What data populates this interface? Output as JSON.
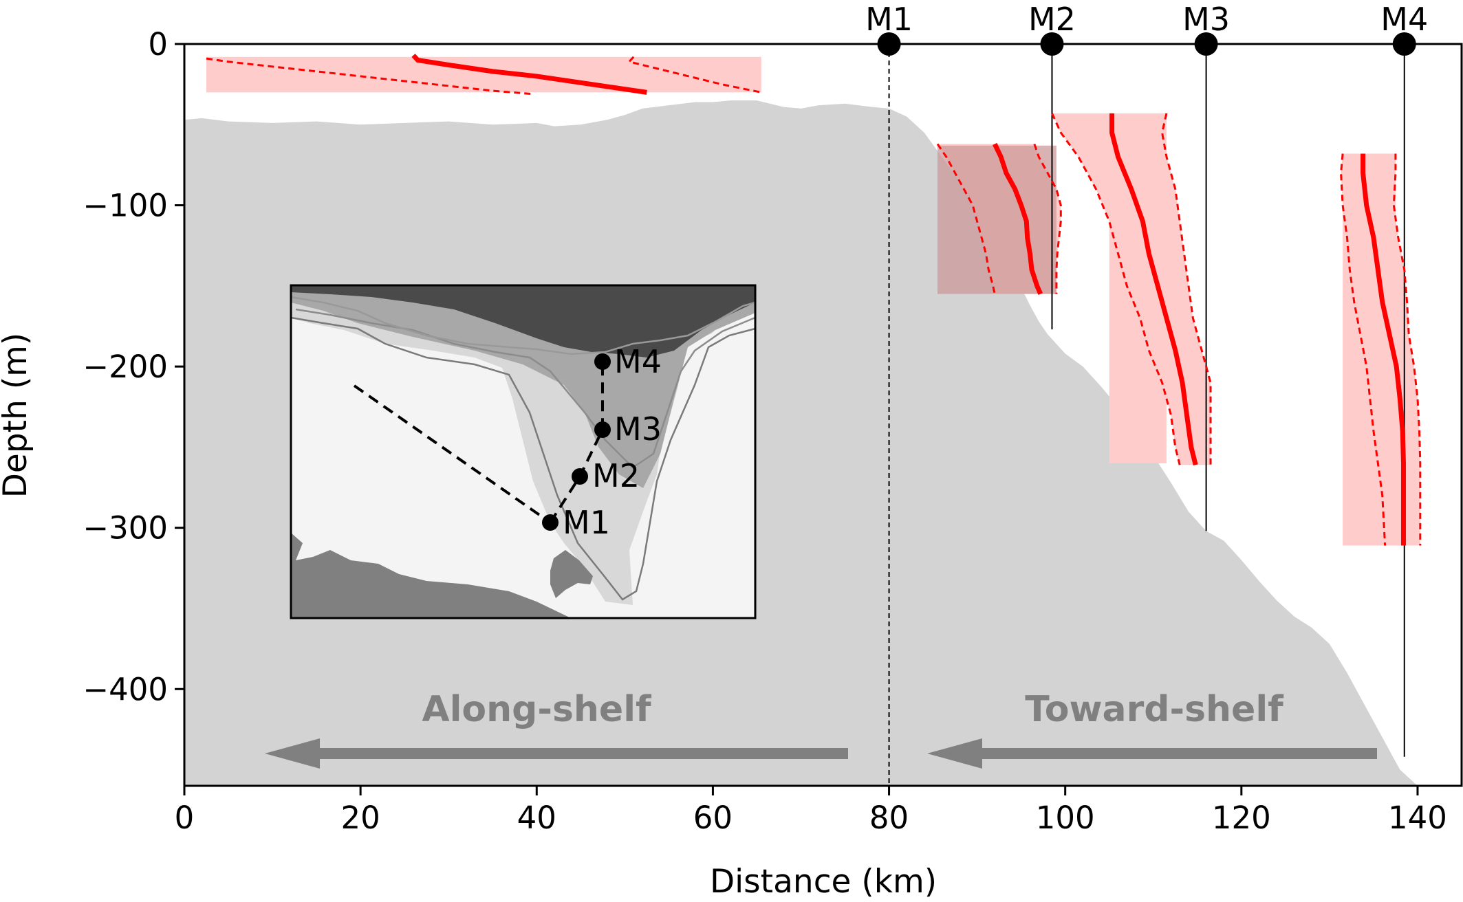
{
  "chart_data": {
    "type": "line",
    "xlabel": "Distance (km)",
    "ylabel": "Depth (m)",
    "xlim": [
      0,
      145
    ],
    "ylim": [
      -460,
      0
    ],
    "x_ticks": [
      0,
      20,
      40,
      60,
      80,
      100,
      120,
      140
    ],
    "y_ticks": [
      0,
      -100,
      -200,
      -300,
      -400
    ],
    "grid": false,
    "colors": {
      "profile": "#ff0000",
      "envelope_fill": "#ffcccc",
      "overlap_fill": "#cc9999",
      "bathymetry": "#d3d3d3",
      "arrow": "#808080",
      "axes": "#000000"
    },
    "bathymetry": {
      "x": [
        0,
        2,
        5,
        10,
        15,
        20,
        25,
        30,
        35,
        40,
        42,
        45,
        48,
        50,
        52,
        55,
        58,
        60,
        62,
        65,
        68,
        70,
        72,
        75,
        78,
        80,
        82,
        84,
        86,
        88,
        90,
        92,
        94,
        96,
        97,
        98,
        100,
        102,
        104,
        106,
        108,
        110,
        112,
        114,
        116,
        118,
        120,
        122,
        124,
        126,
        128,
        130,
        132,
        134,
        136,
        138,
        140
      ],
      "y": [
        -47,
        -46,
        -48,
        -49,
        -48,
        -50,
        -49,
        -48,
        -50,
        -49,
        -51,
        -50,
        -47,
        -44,
        -40,
        -38,
        -36,
        -36,
        -35,
        -35,
        -39,
        -40,
        -38,
        -37,
        -39,
        -40,
        -45,
        -55,
        -70,
        -85,
        -100,
        -118,
        -140,
        -162,
        -172,
        -180,
        -192,
        -200,
        -212,
        -225,
        -238,
        -255,
        -272,
        -290,
        -302,
        -308,
        -320,
        -333,
        -345,
        -355,
        -362,
        -372,
        -390,
        -410,
        -430,
        -450,
        -460
      ]
    },
    "moorings": [
      {
        "name": "M1",
        "x": 80,
        "bottom": -460
      },
      {
        "name": "M2",
        "x": 98.5,
        "bottom": -177
      },
      {
        "name": "M3",
        "x": 116,
        "bottom": -302
      },
      {
        "name": "M4",
        "x": 138.5,
        "bottom": -442
      }
    ],
    "along_shelf_profile": {
      "x_mean": [
        26,
        26.5,
        30,
        35,
        40,
        45,
        50,
        52.5
      ],
      "y_mean": [
        -7,
        -10,
        -13,
        -17,
        -20,
        -24,
        -28,
        -30
      ],
      "x_low": [
        2.5,
        5,
        10,
        15,
        20,
        25,
        30,
        35,
        39.5
      ],
      "y_low": [
        -9,
        -11,
        -14,
        -17,
        -20,
        -23,
        -26,
        -29,
        -31
      ],
      "x_high": [
        51,
        50.5,
        52,
        55,
        58,
        61,
        65.5
      ],
      "y_high": [
        -8,
        -11,
        -13,
        -17,
        -21,
        -25,
        -30
      ],
      "band_depth": [
        -8,
        -30
      ]
    },
    "toward_shelf_profiles": [
      {
        "mooring": "M2",
        "depth": [
          -62,
          -70,
          -80,
          -90,
          -100,
          -110,
          -120,
          -130,
          -140,
          -150,
          -155
        ],
        "mean": [
          92,
          92.7,
          93.3,
          94.3,
          95,
          95.6,
          95.7,
          96,
          96.2,
          96.8,
          97.2
        ],
        "low": [
          85.5,
          86.5,
          87.5,
          88.5,
          89.5,
          90,
          90.5,
          91,
          91.3,
          91.8,
          92
        ],
        "high": [
          96.5,
          97,
          98,
          99,
          99.5,
          99.5,
          99.3,
          99.1,
          99,
          99,
          99
        ],
        "band_depth": [
          -63,
          -155
        ],
        "band_x": [
          85.5,
          99
        ]
      },
      {
        "mooring": "M3",
        "depth": [
          -43,
          -55,
          -70,
          -90,
          -110,
          -130,
          -150,
          -170,
          -190,
          -210,
          -230,
          -250,
          -261
        ],
        "mean": [
          105.3,
          105.3,
          106,
          107.5,
          108.8,
          109.5,
          110.5,
          111.5,
          112.5,
          113.3,
          113.8,
          114.3,
          114.8
        ],
        "low": [
          98.5,
          99.5,
          101.5,
          103.5,
          105,
          106,
          107,
          108.5,
          109.5,
          111,
          112,
          112.5,
          113
        ],
        "high": [
          111.5,
          111,
          111.5,
          112.5,
          113,
          113.5,
          114,
          114.5,
          115.5,
          116.5,
          116.5,
          116.5,
          116.5
        ],
        "band_depth": [
          -45,
          -260
        ],
        "band_x": [
          105,
          111.5
        ]
      },
      {
        "mooring": "M4",
        "depth": [
          -68,
          -80,
          -100,
          -120,
          -140,
          -160,
          -180,
          -200,
          -220,
          -240,
          -260,
          -280,
          -300,
          -311
        ],
        "mean": [
          133.8,
          133.8,
          134.2,
          135,
          135.5,
          136,
          136.8,
          137.6,
          138,
          138.3,
          138.4,
          138.4,
          138.4,
          138.4
        ],
        "low": [
          131.5,
          131.3,
          131.5,
          132,
          132.3,
          132.8,
          133.5,
          134.2,
          134.6,
          135,
          135.5,
          136,
          136.2,
          136.3
        ],
        "high": [
          137.5,
          137.5,
          137.3,
          137.8,
          138.5,
          138.8,
          139,
          139.6,
          140,
          140.2,
          140.3,
          140.3,
          140.3,
          140.3
        ],
        "band_depth": [
          -70,
          -311
        ],
        "band_x": [
          131.5,
          137.5
        ]
      }
    ],
    "inset": {
      "labels": [
        "M4",
        "M3",
        "M2",
        "M1"
      ]
    },
    "annotations": [
      {
        "text": "Along-shelf",
        "direction": "left"
      },
      {
        "text": "Toward-shelf",
        "direction": "left"
      }
    ]
  }
}
